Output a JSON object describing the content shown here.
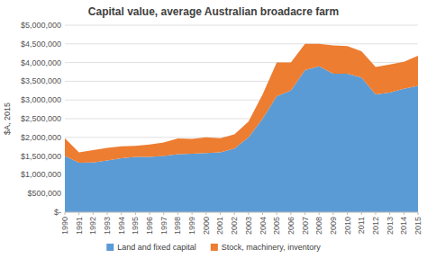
{
  "chart_data": {
    "type": "area",
    "stacked": true,
    "title": "Capital value, average Australian broadacre farm",
    "ylabel": "$A, 2015",
    "x": [
      1990,
      1991,
      1992,
      1993,
      1994,
      1995,
      1996,
      1997,
      1998,
      1999,
      2000,
      2001,
      2002,
      2003,
      2004,
      2005,
      2006,
      2007,
      2008,
      2009,
      2010,
      2011,
      2012,
      2013,
      2014,
      2015
    ],
    "series": [
      {
        "name": "Land and fixed capital",
        "color": "#5B9BD5",
        "values": [
          1500000,
          1320000,
          1330000,
          1380000,
          1440000,
          1480000,
          1480000,
          1500000,
          1550000,
          1560000,
          1580000,
          1600000,
          1700000,
          2000000,
          2500000,
          3100000,
          3250000,
          3800000,
          3900000,
          3700000,
          3700000,
          3600000,
          3150000,
          3200000,
          3300000,
          3380000
        ]
      },
      {
        "name": "Stock, machinery, inventory",
        "color": "#ED7D31",
        "values": [
          480000,
          280000,
          330000,
          340000,
          320000,
          290000,
          330000,
          360000,
          420000,
          400000,
          420000,
          380000,
          380000,
          420000,
          650000,
          900000,
          750000,
          700000,
          600000,
          760000,
          740000,
          700000,
          730000,
          750000,
          720000,
          800000
        ]
      }
    ],
    "xlim": [
      1990,
      2015
    ],
    "xticks": [
      1990,
      1991,
      1992,
      1993,
      1994,
      1995,
      1996,
      1997,
      1998,
      1999,
      2000,
      2001,
      2002,
      2003,
      2004,
      2005,
      2006,
      2007,
      2008,
      2009,
      2010,
      2011,
      2012,
      2013,
      2014,
      2015
    ],
    "ylim": [
      0,
      5000000
    ],
    "yticks": [
      {
        "value": 0,
        "label": "$-"
      },
      {
        "value": 500000,
        "label": "$500,000"
      },
      {
        "value": 1000000,
        "label": "$1,000,000"
      },
      {
        "value": 1500000,
        "label": "$1,500,000"
      },
      {
        "value": 2000000,
        "label": "$2,000,000"
      },
      {
        "value": 2500000,
        "label": "$2,500,000"
      },
      {
        "value": 3000000,
        "label": "$3,000,000"
      },
      {
        "value": 3500000,
        "label": "$3,500,000"
      },
      {
        "value": 4000000,
        "label": "$4,000,000"
      },
      {
        "value": 4500000,
        "label": "$4,500,000"
      },
      {
        "value": 5000000,
        "label": "$5,000,000"
      }
    ],
    "grid": true,
    "legend": "bottom"
  }
}
